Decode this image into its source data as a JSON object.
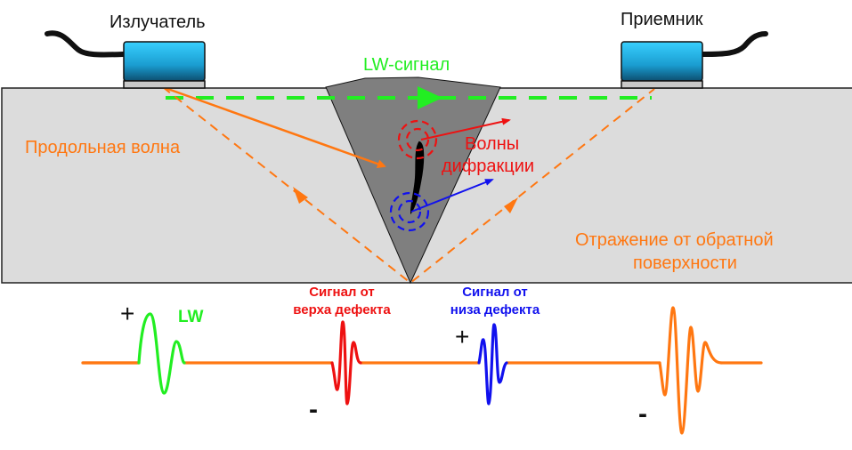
{
  "labels": {
    "transmitter": "Излучатель",
    "receiver": "Приемник",
    "lw_signal": "LW-сигнал",
    "longitudinal_wave": "Продольная волна",
    "diffraction_line1": "Волны",
    "diffraction_line2": "дифракции",
    "backwall_line1": "Отражение от обратной",
    "backwall_line2": "поверхности",
    "top_signal_line1": "Сигнал от",
    "top_signal_line2": "верха дефекта",
    "bottom_signal_line1": "Сигнал от",
    "bottom_signal_line2": "низа дефекта",
    "lw": "LW",
    "plus": "+",
    "minus": "-"
  },
  "colors": {
    "lateral_wave": "#22ee22",
    "longitudinal": "#ff7711",
    "top_diffraction": "#ee1111",
    "bottom_diffraction": "#1111ee",
    "specimen": "#dcdcdc",
    "weld": "#7f7f7f",
    "probe": "#1aa8d8"
  }
}
